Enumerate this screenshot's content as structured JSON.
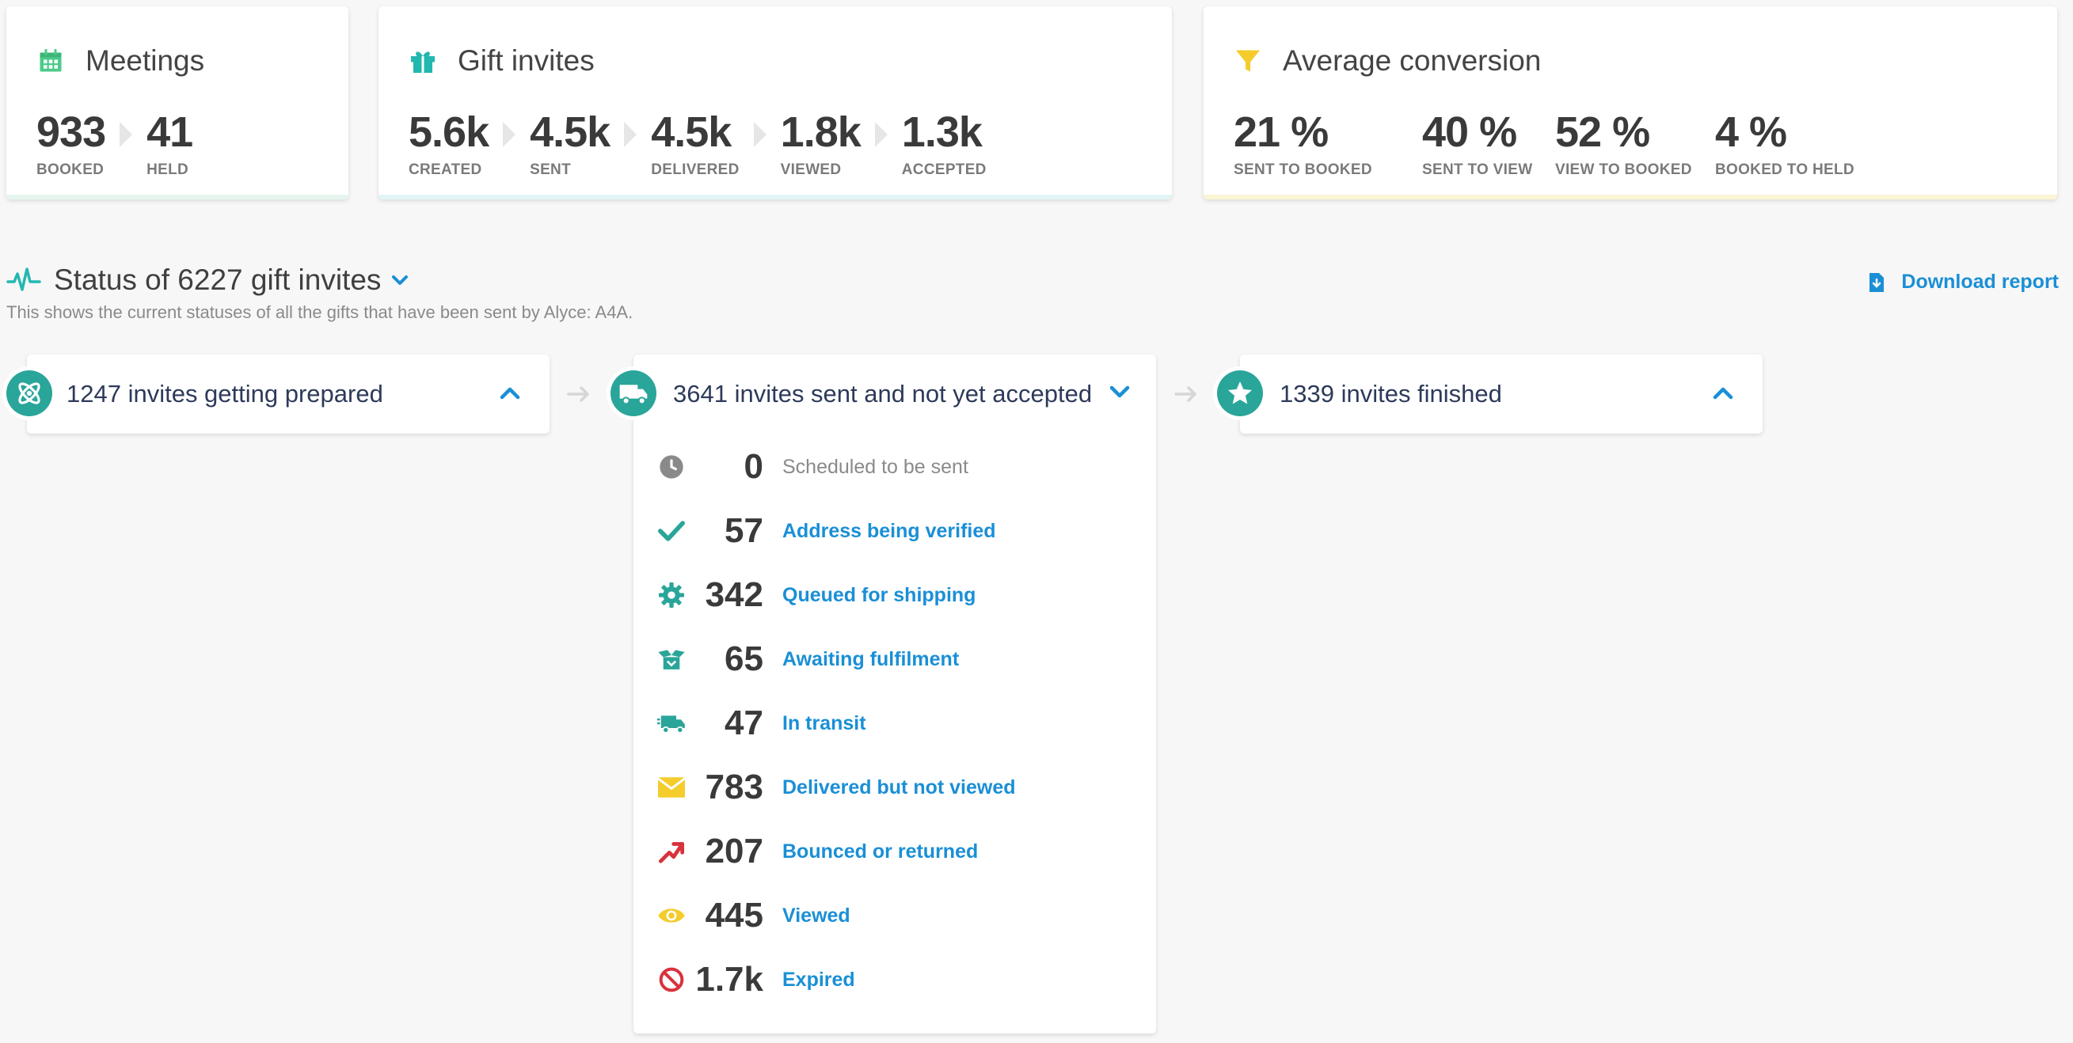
{
  "meetings": {
    "title": "Meetings",
    "stats": [
      {
        "value": "933",
        "label": "BOOKED"
      },
      {
        "value": "41",
        "label": "HELD"
      }
    ]
  },
  "gift_invites": {
    "title": "Gift invites",
    "stats": [
      {
        "value": "5.6k",
        "label": "CREATED"
      },
      {
        "value": "4.5k",
        "label": "SENT"
      },
      {
        "value": "4.5k",
        "label": "DELIVERED"
      },
      {
        "value": "1.8k",
        "label": "VIEWED"
      },
      {
        "value": "1.3k",
        "label": "ACCEPTED"
      }
    ]
  },
  "conversion": {
    "title": "Average conversion",
    "stats": [
      {
        "value": "21 %",
        "label": "SENT TO BOOKED"
      },
      {
        "value": "40 %",
        "label": "SENT TO VIEW"
      },
      {
        "value": "52 %",
        "label": "VIEW TO BOOKED"
      },
      {
        "value": "4 %",
        "label": "BOOKED TO HELD"
      }
    ]
  },
  "status": {
    "title": "Status of 6227 gift invites",
    "subtitle": "This shows the current statuses of all the gifts that have been sent by Alyce: A4A.",
    "download_label": "Download report"
  },
  "columns": [
    {
      "title": "1247 invites getting prepared",
      "icon": "atom-icon"
    },
    {
      "title": "3641 invites sent and not yet accepted",
      "icon": "truck-icon"
    },
    {
      "title": "1339 invites finished",
      "icon": "star-icon"
    }
  ],
  "sent_rows": [
    {
      "value": "0",
      "label": "Scheduled to be sent",
      "icon": "clock-icon"
    },
    {
      "value": "57",
      "label": "Address being verified",
      "icon": "check-icon"
    },
    {
      "value": "342",
      "label": "Queued for shipping",
      "icon": "gear-icon"
    },
    {
      "value": "65",
      "label": "Awaiting fulfilment",
      "icon": "open-box-icon"
    },
    {
      "value": "47",
      "label": "In transit",
      "icon": "shipping-truck-icon"
    },
    {
      "value": "783",
      "label": "Delivered but not viewed",
      "icon": "envelope-icon"
    },
    {
      "value": "207",
      "label": "Bounced or returned",
      "icon": "bounce-arrow-icon"
    },
    {
      "value": "445",
      "label": "Viewed",
      "icon": "eye-icon"
    },
    {
      "value": "1.7k",
      "label": "Expired",
      "icon": "ban-icon"
    }
  ],
  "colors": {
    "accent_blue": "#1a8fd6",
    "teal": "#2aa59a",
    "meetings_green": "#4ccb8a",
    "gift_teal": "#22b8b0",
    "yellow": "#f4cc2c",
    "red": "#d8323c",
    "grey": "#8a8a8a"
  }
}
